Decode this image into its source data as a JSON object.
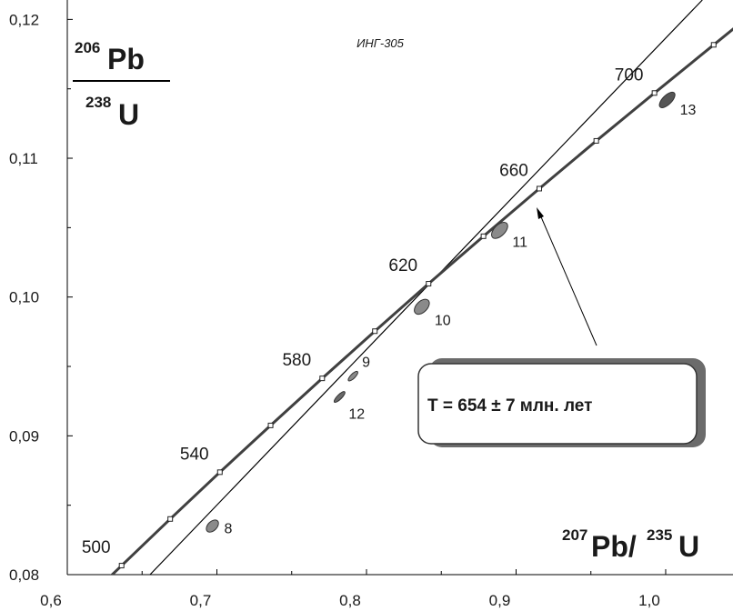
{
  "chart_data": {
    "type": "concordia",
    "title": "ИНГ-305",
    "y_label": {
      "numerator_mass": "206",
      "numerator_element": "Pb",
      "denominator_mass": "238",
      "denominator_element": "U"
    },
    "x_label": {
      "numerator_mass": "207",
      "numerator_element": "Pb/",
      "denominator_mass": "235",
      "denominator_element": "U"
    },
    "xlim": [
      0.6,
      1.045
    ],
    "ylim": [
      0.08,
      0.1214
    ],
    "xticks": [
      {
        "value": 0.6,
        "label": "0,6"
      },
      {
        "value": 0.7,
        "label": "0,7"
      },
      {
        "value": 0.8,
        "label": "0,8"
      },
      {
        "value": 0.9,
        "label": "0,9"
      },
      {
        "value": 1.0,
        "label": "1,0"
      }
    ],
    "x_minor_ticks": [
      0.65,
      0.75,
      0.85,
      0.95
    ],
    "yticks": [
      {
        "value": 0.08,
        "label": "0,08"
      },
      {
        "value": 0.09,
        "label": "0,09"
      },
      {
        "value": 0.1,
        "label": "0,10"
      },
      {
        "value": 0.11,
        "label": "0,11"
      },
      {
        "value": 0.12,
        "label": "0,12"
      }
    ],
    "y_minor_ticks": [
      0.085,
      0.095,
      0.105,
      0.115
    ],
    "concordia": {
      "color": "#404040",
      "x": [
        0.6363,
        0.6688,
        0.702,
        0.7359,
        0.7704,
        0.8056,
        0.8415,
        0.8782,
        0.9155,
        0.9536,
        0.9925,
        1.0321
      ],
      "y": [
        0.08065,
        0.08401,
        0.08738,
        0.09075,
        0.09414,
        0.09754,
        0.10096,
        0.10438,
        0.10781,
        0.11125,
        0.1147,
        0.11817
      ],
      "labels": [
        500,
        null,
        540,
        null,
        580,
        null,
        620,
        null,
        660,
        null,
        700,
        null
      ]
    },
    "discordia": {
      "color": "#000000",
      "x": [
        0.6553,
        1.0245
      ],
      "y": [
        0.08,
        0.1214
      ]
    },
    "samples": {
      "names": [
        "8",
        "9",
        "10",
        "11",
        "12",
        "13"
      ],
      "x": [
        0.697,
        0.791,
        0.837,
        0.889,
        0.782,
        1.001
      ],
      "y": [
        0.0835,
        0.0943,
        0.0993,
        0.1048,
        0.0928,
        0.1142
      ],
      "colors": [
        "#8a8a8a",
        "#8a8a8a",
        "#8a8a8a",
        "#8a8a8a",
        "#6a6a6a",
        "#555555"
      ]
    },
    "annotation": "T = 654 ± 7 млн. лет"
  }
}
